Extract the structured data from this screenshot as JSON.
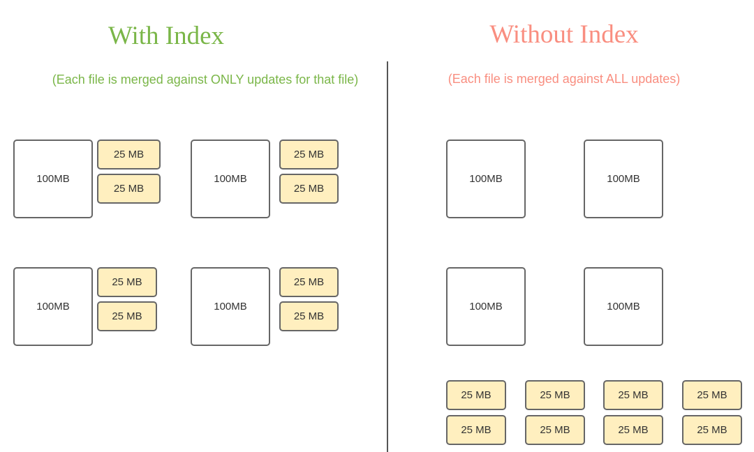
{
  "colors": {
    "with_index": "#7ab648",
    "without_index": "#f98e80",
    "update_fill": "#ffefbf",
    "border": "#666666"
  },
  "with_index": {
    "title": "With Index",
    "subtitle": "(Each file is merged against ONLY updates for that file)",
    "groups": [
      {
        "file": "100MB",
        "updates": [
          "25 MB",
          "25 MB"
        ]
      },
      {
        "file": "100MB",
        "updates": [
          "25 MB",
          "25 MB"
        ]
      },
      {
        "file": "100MB",
        "updates": [
          "25 MB",
          "25 MB"
        ]
      },
      {
        "file": "100MB",
        "updates": [
          "25 MB",
          "25 MB"
        ]
      }
    ]
  },
  "without_index": {
    "title": "Without Index",
    "subtitle": "(Each file is merged against ALL updates)",
    "files": [
      "100MB",
      "100MB",
      "100MB",
      "100MB"
    ],
    "updates": [
      "25 MB",
      "25 MB",
      "25 MB",
      "25 MB",
      "25 MB",
      "25 MB",
      "25 MB",
      "25 MB"
    ]
  }
}
